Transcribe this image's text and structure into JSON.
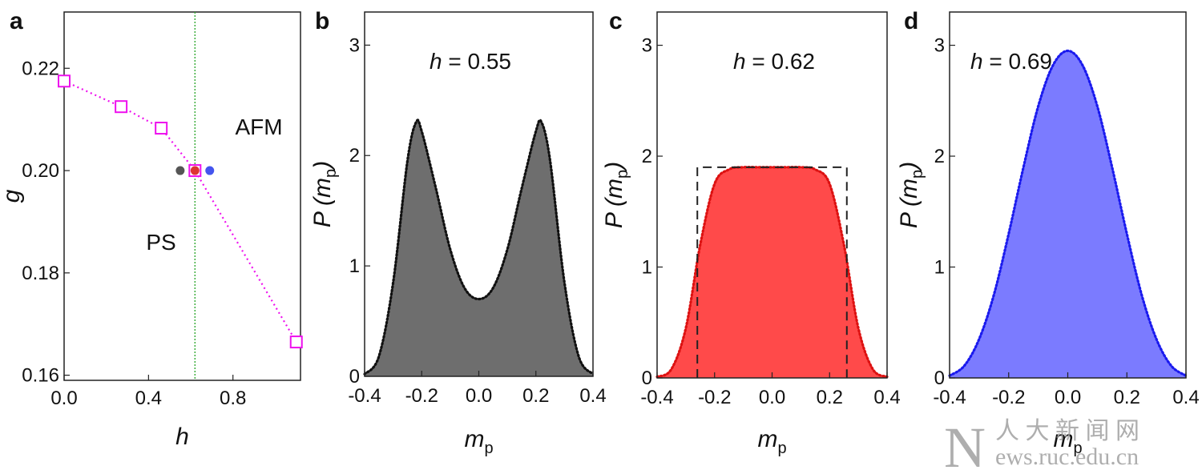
{
  "chart_data": [
    {
      "panel": "a",
      "type": "scatter",
      "xlabel": "h",
      "ylabel": "g",
      "xlim": [
        0.0,
        1.12
      ],
      "ylim": [
        0.159,
        0.231
      ],
      "xticks": [
        "0.0",
        "0.4",
        "0.8"
      ],
      "yticks": [
        "0.16",
        "0.18",
        "0.20",
        "0.22"
      ],
      "series": [
        {
          "x": [
            0.0,
            0.27,
            0.46,
            0.62,
            1.1
          ],
          "y": [
            0.2175,
            0.2125,
            0.2083,
            0.2,
            0.1665
          ],
          "color": "#ee11ee"
        }
      ],
      "vline_x": 0.62,
      "vline_color": "#33aa33",
      "points": [
        {
          "x": 0.55,
          "y": 0.2,
          "color": "#555555"
        },
        {
          "x": 0.62,
          "y": 0.2,
          "color": "#dd3333"
        },
        {
          "x": 0.69,
          "y": 0.2,
          "color": "#4455ee"
        }
      ],
      "annotations": [
        "AFM",
        "PS"
      ]
    },
    {
      "panel": "b",
      "type": "area",
      "h_label": "h",
      "h_value": "= 0.55",
      "xlabel": "m",
      "xlabel_sub": "p",
      "ylabel": "P (m",
      "ylabel_sub": "p",
      "ylabel_close": ")",
      "xlim": [
        -0.4,
        0.4
      ],
      "ylim": [
        0,
        3.3
      ],
      "xticks": [
        "-0.4",
        "-0.2",
        "0.0",
        "0.2",
        "0.4"
      ],
      "yticks": [
        "0",
        "1",
        "2",
        "3"
      ],
      "x": [
        -0.4,
        -0.35,
        -0.3,
        -0.25,
        -0.22,
        -0.2,
        -0.15,
        -0.1,
        -0.05,
        0.0,
        0.05,
        0.1,
        0.15,
        0.2,
        0.22,
        0.25,
        0.3,
        0.35,
        0.4
      ],
      "y": [
        0.02,
        0.18,
        0.85,
        1.95,
        2.3,
        2.22,
        1.7,
        1.15,
        0.8,
        0.7,
        0.8,
        1.15,
        1.7,
        2.22,
        2.3,
        1.95,
        0.85,
        0.18,
        0.02
      ],
      "fill_color": "#6e6e6e",
      "line_color": "#111111"
    },
    {
      "panel": "c",
      "type": "area",
      "h_label": "h",
      "h_value": "= 0.62",
      "xlabel": "m",
      "xlabel_sub": "p",
      "ylabel": "P (m",
      "ylabel_sub": "p",
      "ylabel_close": ")",
      "xlim": [
        -0.4,
        0.4
      ],
      "ylim": [
        0,
        3.3
      ],
      "xticks": [
        "-0.4",
        "-0.2",
        "0.0",
        "0.2",
        "0.4"
      ],
      "yticks": [
        "0",
        "1",
        "2",
        "3"
      ],
      "x": [
        -0.4,
        -0.35,
        -0.3,
        -0.25,
        -0.2,
        -0.15,
        -0.1,
        -0.05,
        0.0,
        0.05,
        0.1,
        0.15,
        0.2,
        0.25,
        0.3,
        0.35,
        0.4
      ],
      "y": [
        0.01,
        0.08,
        0.45,
        1.2,
        1.75,
        1.88,
        1.9,
        1.9,
        1.9,
        1.9,
        1.9,
        1.88,
        1.75,
        1.2,
        0.45,
        0.08,
        0.01
      ],
      "box": {
        "x0": -0.26,
        "x1": 0.26,
        "y": 1.9
      },
      "fill_color": "#ff4a4a",
      "line_color": "#dd1111"
    },
    {
      "panel": "d",
      "type": "area",
      "h_label": "h",
      "h_value": "= 0.69",
      "xlabel": "m",
      "xlabel_sub": "p",
      "ylabel": "P (m",
      "ylabel_sub": "p",
      "ylabel_close": ")",
      "xlim": [
        -0.4,
        0.4
      ],
      "ylim": [
        0,
        3.3
      ],
      "xticks": [
        "-0.4",
        "-0.2",
        "0.0",
        "0.2",
        "0.4"
      ],
      "yticks": [
        "0",
        "1",
        "2",
        "3"
      ],
      "x": [
        -0.4,
        -0.35,
        -0.3,
        -0.25,
        -0.2,
        -0.15,
        -0.1,
        -0.05,
        0.0,
        0.05,
        0.1,
        0.15,
        0.2,
        0.25,
        0.3,
        0.35,
        0.4
      ],
      "y": [
        0.02,
        0.11,
        0.35,
        0.75,
        1.3,
        1.9,
        2.45,
        2.82,
        2.95,
        2.82,
        2.45,
        1.9,
        1.3,
        0.75,
        0.35,
        0.11,
        0.02
      ],
      "fill_color": "#7b7bff",
      "line_color": "#1a1aee"
    }
  ],
  "watermark": {
    "letter": "N",
    "chars": "人 大 新 闻 网",
    "url": "ews.ruc.edu.cn"
  }
}
